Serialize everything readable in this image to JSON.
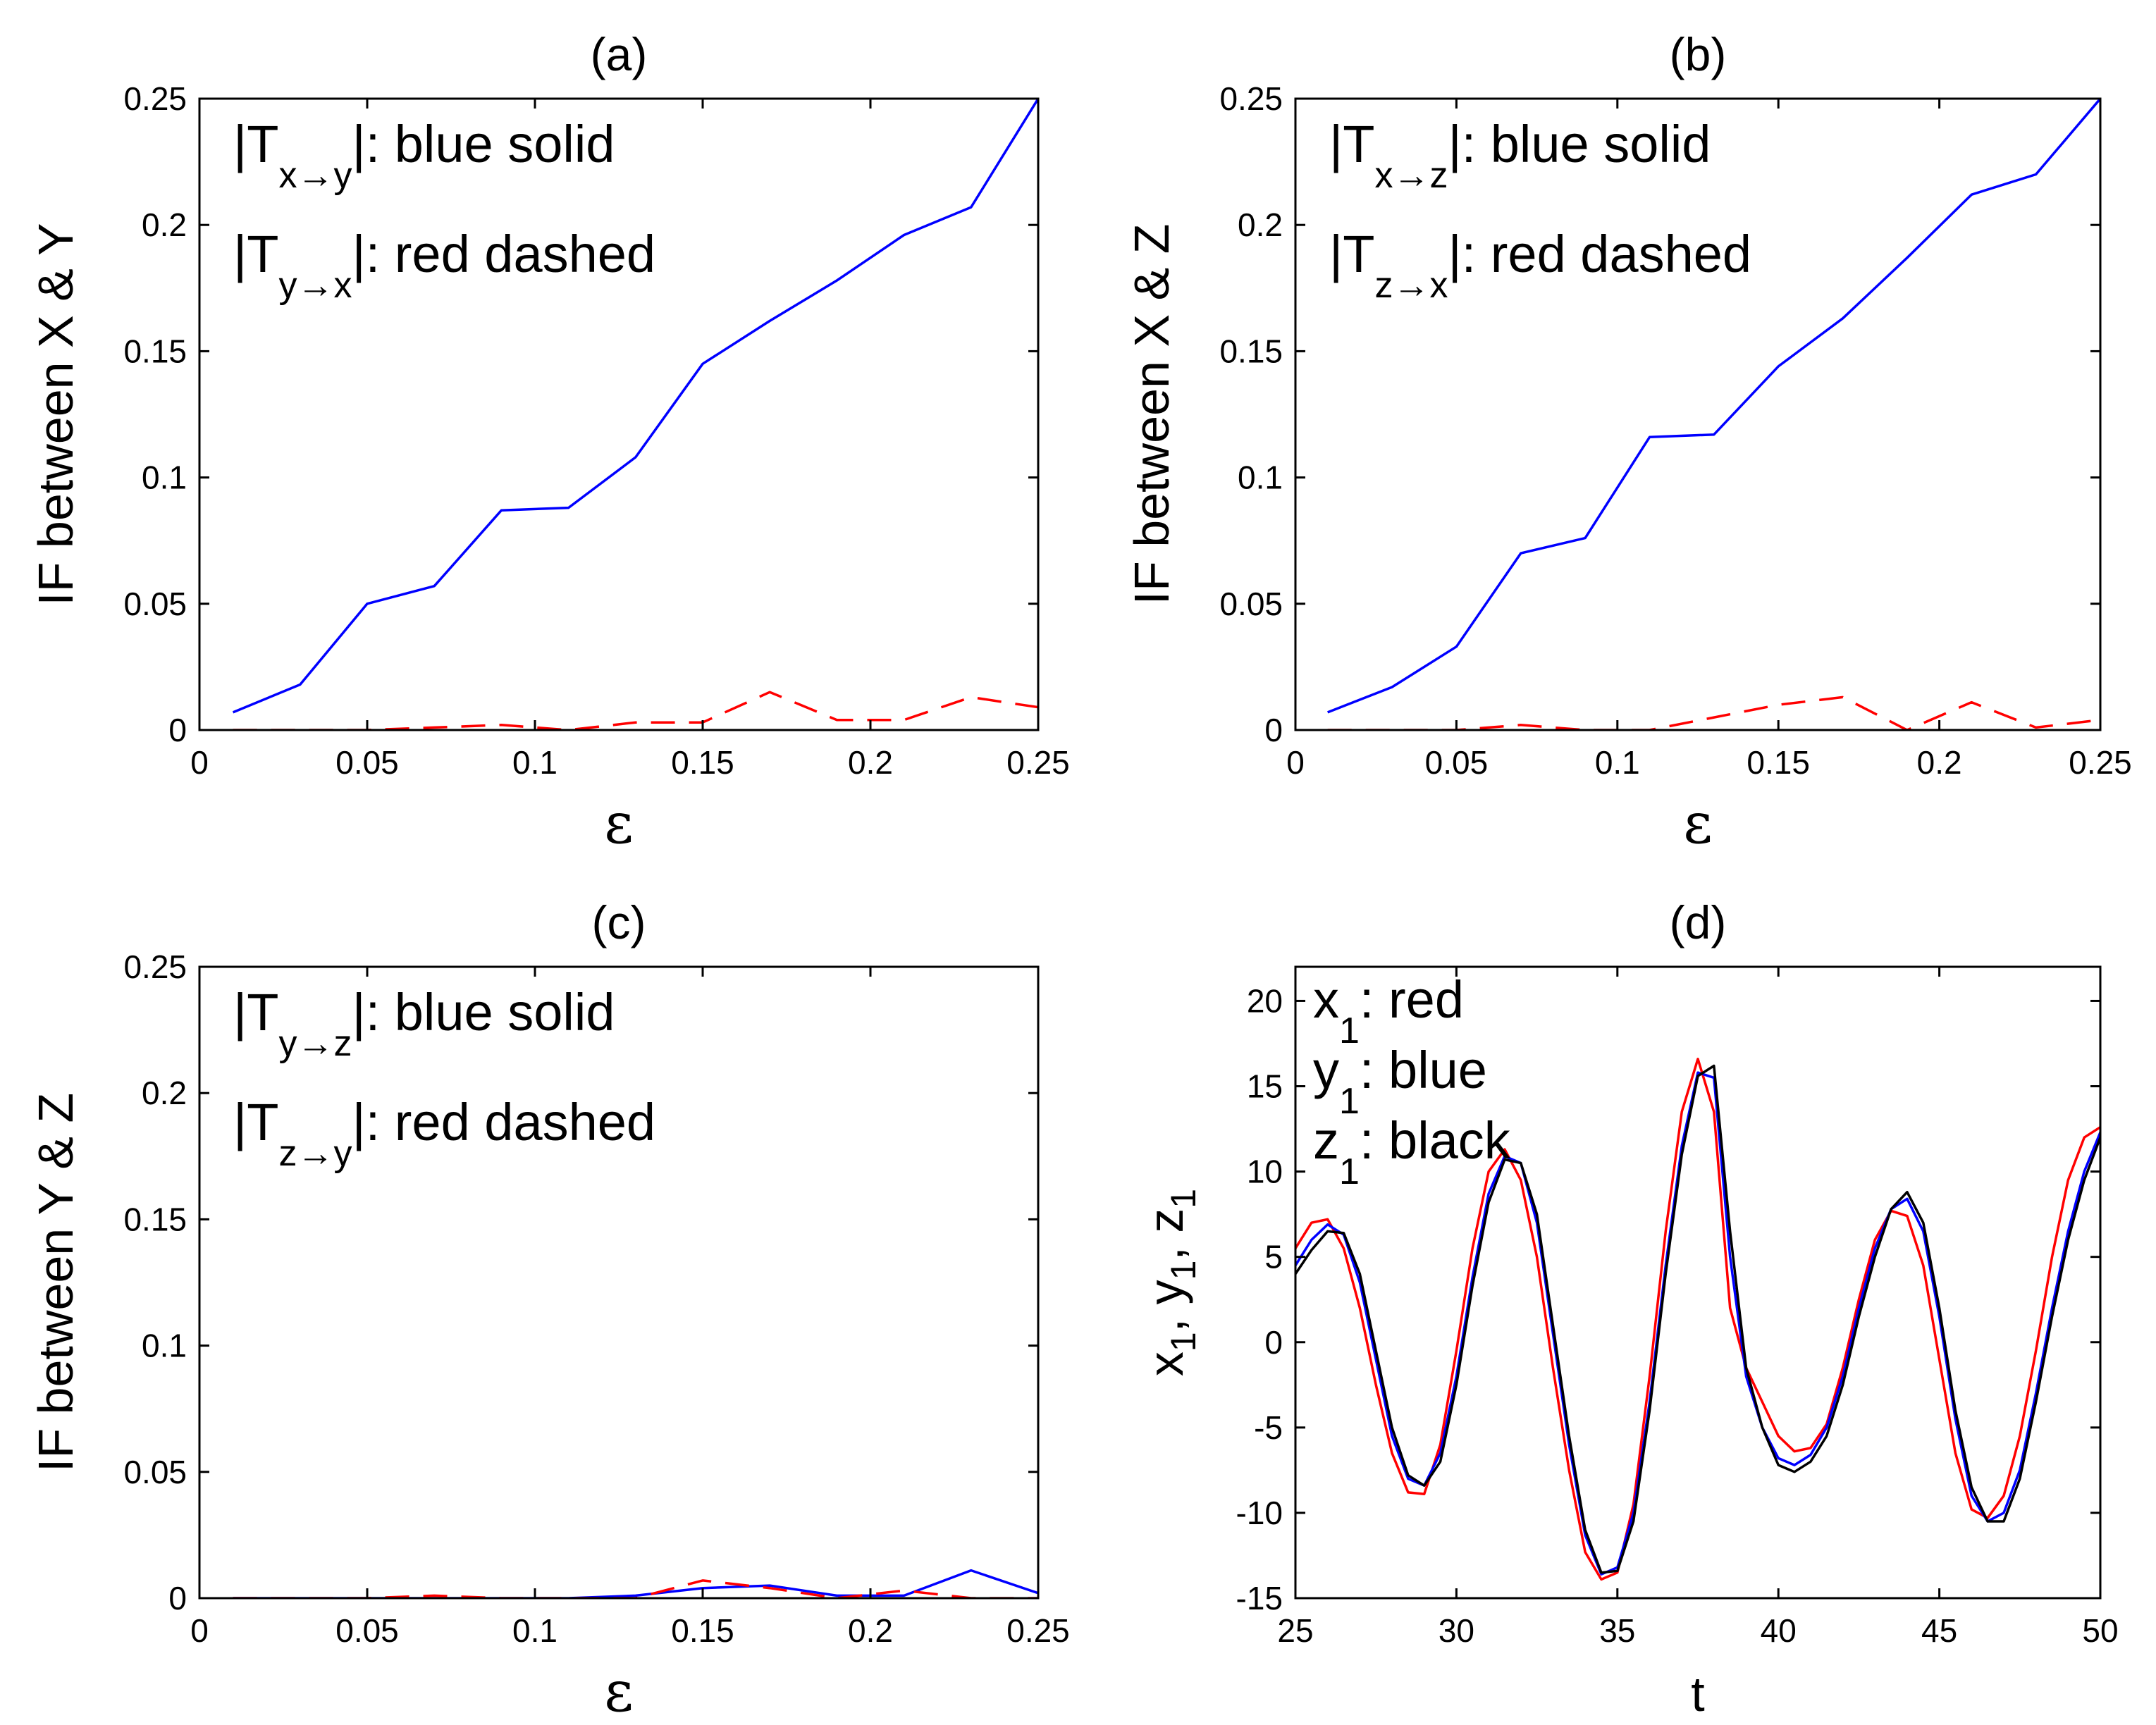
{
  "chart_data": [
    {
      "type": "line",
      "title": "(a)",
      "xlabel": "ε",
      "ylabel": "IF between X & Y",
      "xlim": [
        0,
        0.25
      ],
      "ylim": [
        0,
        0.25
      ],
      "xticks": [
        "0",
        "0.05",
        "0.1",
        "0.15",
        "0.2",
        "0.25"
      ],
      "yticks": [
        "0",
        "0.05",
        "0.1",
        "0.15",
        "0.2",
        "0.25"
      ],
      "x": [
        0.01,
        0.03,
        0.05,
        0.07,
        0.09,
        0.11,
        0.13,
        0.15,
        0.17,
        0.19,
        0.21,
        0.23,
        0.25
      ],
      "series": [
        {
          "name": "|Tx→y|",
          "color": "#0000ff",
          "style": "solid",
          "values": [
            0.007,
            0.018,
            0.05,
            0.057,
            0.087,
            0.088,
            0.108,
            0.145,
            0.162,
            0.178,
            0.196,
            0.207,
            0.25
          ]
        },
        {
          "name": "|Ty→x|",
          "color": "#ff0000",
          "style": "dashed",
          "values": [
            0.0,
            0.0,
            0.0,
            0.001,
            0.002,
            0.0,
            0.003,
            0.003,
            0.015,
            0.004,
            0.004,
            0.013,
            0.009
          ]
        }
      ],
      "legend": [
        {
          "prefix": "|T",
          "sub": "x→y",
          "suffix": "|: blue solid"
        },
        {
          "prefix": "|T",
          "sub": "y→x",
          "suffix": "|: red dashed"
        }
      ],
      "legend_position": "top-left"
    },
    {
      "type": "line",
      "title": "(b)",
      "xlabel": "ε",
      "ylabel": "IF between X & Z",
      "xlim": [
        0,
        0.25
      ],
      "ylim": [
        0,
        0.25
      ],
      "xticks": [
        "0",
        "0.05",
        "0.1",
        "0.15",
        "0.2",
        "0.25"
      ],
      "yticks": [
        "0",
        "0.05",
        "0.1",
        "0.15",
        "0.2",
        "0.25"
      ],
      "x": [
        0.01,
        0.03,
        0.05,
        0.07,
        0.09,
        0.11,
        0.13,
        0.15,
        0.17,
        0.19,
        0.21,
        0.23,
        0.25
      ],
      "series": [
        {
          "name": "|Tx→z|",
          "color": "#0000ff",
          "style": "solid",
          "values": [
            0.007,
            0.017,
            0.033,
            0.07,
            0.076,
            0.116,
            0.117,
            0.144,
            0.163,
            0.187,
            0.212,
            0.22,
            0.25
          ]
        },
        {
          "name": "|Tz→x|",
          "color": "#ff0000",
          "style": "dashed",
          "values": [
            0.0,
            0.0,
            0.0,
            0.002,
            0.0,
            0.0,
            0.005,
            0.01,
            0.013,
            0.0,
            0.011,
            0.001,
            0.004
          ]
        }
      ],
      "legend": [
        {
          "prefix": "|T",
          "sub": "x→z",
          "suffix": "|: blue solid"
        },
        {
          "prefix": "|T",
          "sub": "z→x",
          "suffix": "|: red dashed"
        }
      ],
      "legend_position": "top-left"
    },
    {
      "type": "line",
      "title": "(c)",
      "xlabel": "ε",
      "ylabel": "IF between Y & Z",
      "xlim": [
        0,
        0.25
      ],
      "ylim": [
        0,
        0.25
      ],
      "xticks": [
        "0",
        "0.05",
        "0.1",
        "0.15",
        "0.2",
        "0.25"
      ],
      "yticks": [
        "0",
        "0.05",
        "0.1",
        "0.15",
        "0.2",
        "0.25"
      ],
      "x": [
        0.01,
        0.03,
        0.05,
        0.07,
        0.09,
        0.11,
        0.13,
        0.15,
        0.17,
        0.19,
        0.21,
        0.23,
        0.25
      ],
      "series": [
        {
          "name": "|Ty→z|",
          "color": "#0000ff",
          "style": "solid",
          "values": [
            0.0,
            0.0,
            0.0,
            0.0,
            0.0,
            0.0,
            0.001,
            0.004,
            0.005,
            0.001,
            0.001,
            0.011,
            0.002
          ]
        },
        {
          "name": "|Tz→y|",
          "color": "#ff0000",
          "style": "dashed",
          "values": [
            0.0,
            0.0,
            0.0,
            0.001,
            0.0,
            0.0,
            0.0,
            0.007,
            0.004,
            0.0,
            0.003,
            0.0,
            0.0
          ]
        }
      ],
      "legend": [
        {
          "prefix": "|T",
          "sub": "y→z",
          "suffix": "|: blue solid"
        },
        {
          "prefix": "|T",
          "sub": "z→y",
          "suffix": "|: red dashed"
        }
      ],
      "legend_position": "top-left"
    },
    {
      "type": "line",
      "title": "(d)",
      "xlabel": "t",
      "ylabel": "x1, y1, z1",
      "xlim": [
        25,
        50
      ],
      "ylim": [
        -15,
        22
      ],
      "xticks": [
        "25",
        "30",
        "35",
        "40",
        "45",
        "50"
      ],
      "yticks": [
        "-15",
        "-10",
        "-5",
        "0",
        "5",
        "10",
        "15",
        "20"
      ],
      "x": [
        25,
        25.5,
        26,
        26.5,
        27,
        27.5,
        28,
        28.5,
        29,
        29.5,
        30,
        30.5,
        31,
        31.5,
        32,
        32.5,
        33,
        33.5,
        34,
        34.5,
        35,
        35.5,
        36,
        36.5,
        37,
        37.5,
        38,
        38.5,
        39,
        39.5,
        40,
        40.5,
        41,
        41.5,
        42,
        42.5,
        43,
        43.5,
        44,
        44.5,
        45,
        45.5,
        46,
        46.5,
        47,
        47.5,
        48,
        48.5,
        49,
        49.5,
        50
      ],
      "series": [
        {
          "name": "x1",
          "color": "#ff0000",
          "values": [
            5.5,
            7.0,
            7.2,
            5.5,
            2.0,
            -2.5,
            -6.5,
            -8.8,
            -8.9,
            -6.0,
            -0.5,
            5.5,
            10.0,
            11.3,
            9.5,
            5.0,
            -1.5,
            -7.5,
            -12.3,
            -13.9,
            -13.5,
            -9.5,
            -2.0,
            6.5,
            13.5,
            16.6,
            13.5,
            2.0,
            -1.5,
            -3.5,
            -5.5,
            -6.4,
            -6.2,
            -4.8,
            -1.5,
            2.5,
            6.0,
            7.7,
            7.4,
            4.5,
            -1.0,
            -6.5,
            -9.8,
            -10.3,
            -9.0,
            -5.5,
            -0.5,
            5.0,
            9.5,
            12.0,
            12.6
          ]
        },
        {
          "name": "y1",
          "color": "#0000ff",
          "values": [
            4.5,
            6.0,
            6.9,
            6.3,
            3.5,
            -1.0,
            -5.5,
            -8.0,
            -8.4,
            -6.5,
            -2.0,
            3.8,
            8.7,
            10.9,
            10.5,
            7.0,
            0.5,
            -6.0,
            -11.3,
            -13.6,
            -13.2,
            -10.0,
            -3.5,
            4.5,
            11.5,
            15.8,
            15.5,
            5.0,
            -2.0,
            -5.0,
            -6.8,
            -7.2,
            -6.6,
            -5.0,
            -2.0,
            2.0,
            5.5,
            7.8,
            8.4,
            6.5,
            1.5,
            -4.5,
            -9.0,
            -10.5,
            -10.0,
            -7.5,
            -3.0,
            2.0,
            6.5,
            10.0,
            12.3
          ]
        },
        {
          "name": "z1",
          "color": "#000000",
          "values": [
            4.0,
            5.4,
            6.5,
            6.4,
            4.0,
            -0.5,
            -5.0,
            -7.8,
            -8.4,
            -7.0,
            -2.5,
            3.3,
            8.2,
            10.7,
            10.5,
            7.5,
            1.0,
            -5.5,
            -11.0,
            -13.5,
            -13.4,
            -10.5,
            -4.0,
            4.0,
            11.0,
            15.6,
            16.2,
            6.5,
            -1.5,
            -5.0,
            -7.2,
            -7.6,
            -7.0,
            -5.5,
            -2.5,
            1.5,
            5.0,
            7.8,
            8.8,
            7.0,
            2.0,
            -4.0,
            -8.5,
            -10.5,
            -10.5,
            -8.0,
            -3.5,
            1.5,
            6.0,
            9.5,
            12.0
          ]
        }
      ],
      "legend": [
        {
          "prefix": "x",
          "sub": "1",
          "suffix": ": red"
        },
        {
          "prefix": "y",
          "sub": "1",
          "suffix": ": blue"
        },
        {
          "prefix": "z",
          "sub": "1",
          "suffix": ": black"
        }
      ],
      "legend_position": "top-left"
    }
  ]
}
